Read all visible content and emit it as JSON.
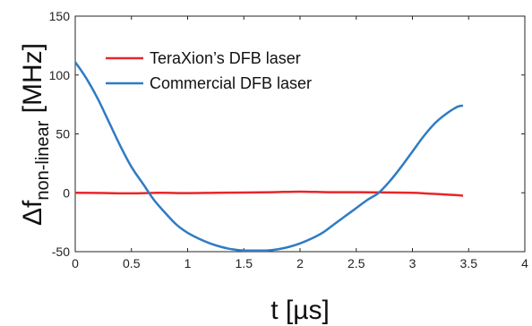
{
  "chart_data": {
    "type": "line",
    "xlabel_main": "t [µs]",
    "ylabel_main": "Δf",
    "ylabel_sub": "non-linear",
    "ylabel_unit": " [MHz]",
    "xlim": [
      0,
      4
    ],
    "ylim": [
      -50,
      150
    ],
    "x_ticks": [
      0,
      0.5,
      1,
      1.5,
      2,
      2.5,
      3,
      3.5,
      4
    ],
    "x_tick_labels": [
      "0",
      "0.5",
      "1",
      "1.5",
      "2",
      "2.5",
      "3",
      "3.5",
      "4"
    ],
    "y_ticks": [
      -50,
      0,
      50,
      100,
      150
    ],
    "y_tick_labels": [
      "-50",
      "0",
      "50",
      "100",
      "150"
    ],
    "grid": false,
    "legend_position": "top-left",
    "series": [
      {
        "name": "TeraXion’s DFB laser",
        "color": "#e8262a",
        "x": [
          0,
          0.25,
          0.5,
          0.75,
          1.0,
          1.25,
          1.5,
          1.75,
          2.0,
          2.25,
          2.5,
          2.75,
          3.0,
          3.1,
          3.2,
          3.3,
          3.4,
          3.45
        ],
        "y": [
          0,
          -0.2,
          -0.5,
          0,
          -0.3,
          0,
          0.2,
          0.5,
          1,
          0.5,
          0.5,
          0.3,
          0,
          -0.5,
          -1,
          -1.5,
          -2,
          -2.5
        ]
      },
      {
        "name": "Commercial DFB laser",
        "color": "#2e7cc4",
        "x": [
          0,
          0.1,
          0.2,
          0.3,
          0.4,
          0.5,
          0.6,
          0.7,
          0.8,
          0.9,
          1.0,
          1.1,
          1.2,
          1.3,
          1.4,
          1.5,
          1.6,
          1.7,
          1.8,
          1.9,
          2.0,
          2.1,
          2.2,
          2.3,
          2.4,
          2.5,
          2.6,
          2.7,
          2.8,
          2.9,
          3.0,
          3.1,
          3.2,
          3.3,
          3.4,
          3.45
        ],
        "y": [
          111,
          97,
          80,
          60,
          40,
          22,
          8,
          -6,
          -17,
          -27,
          -34,
          -39,
          -43,
          -46,
          -48,
          -49,
          -49,
          -49,
          -48,
          -46,
          -43,
          -39,
          -34,
          -27,
          -20,
          -13,
          -6,
          0,
          10,
          22,
          35,
          48,
          59,
          67,
          73,
          74
        ]
      }
    ]
  }
}
